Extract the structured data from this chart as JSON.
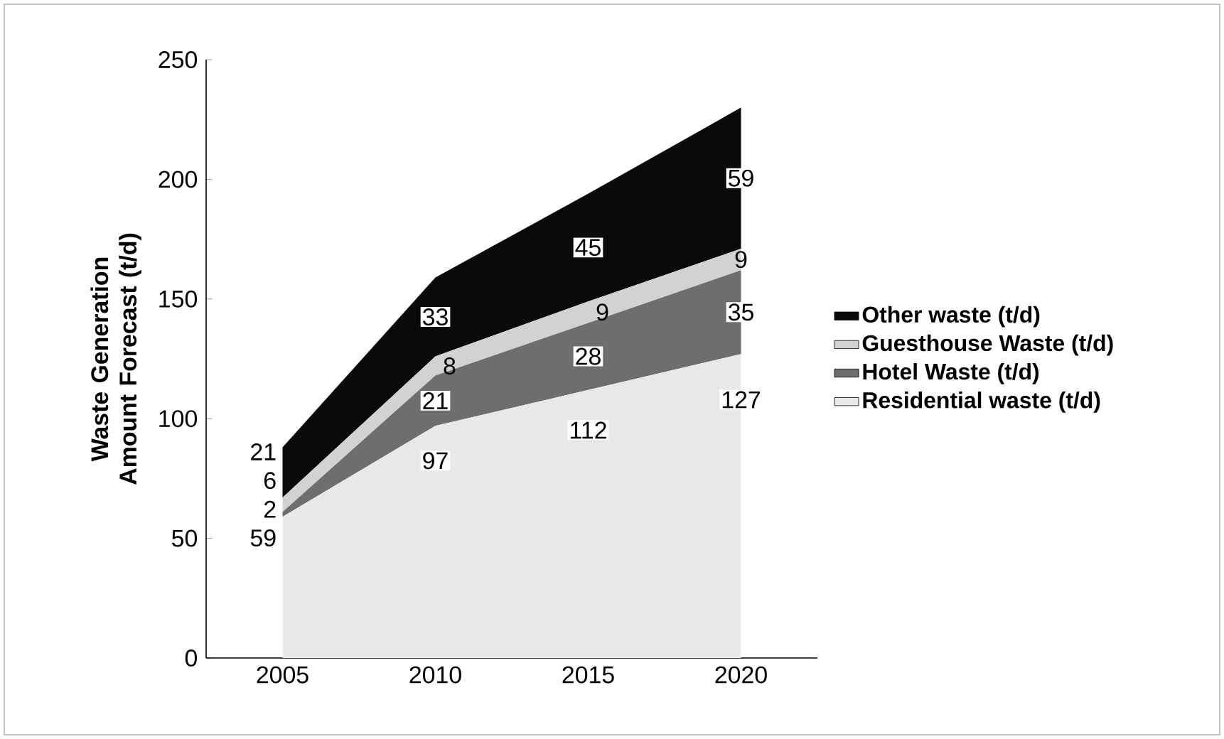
{
  "chart_data": {
    "type": "area",
    "stacked": true,
    "categories": [
      "2005",
      "2010",
      "2015",
      "2020"
    ],
    "ylabel": "Waste Generation Amount Forecast (t/d)",
    "series": [
      {
        "name": "Residential waste (t/d)",
        "color": "#e8e8e8",
        "values": [
          59,
          97,
          112,
          127
        ]
      },
      {
        "name": "Hotel Waste (t/d)",
        "color": "#6e6e6e",
        "values": [
          2,
          21,
          28,
          35
        ]
      },
      {
        "name": "Guesthouse Waste (t/d)",
        "color": "#d2d2d2",
        "values": [
          6,
          8,
          9,
          9
        ]
      },
      {
        "name": "Other waste (t/d)",
        "color": "#0a0a0a",
        "values": [
          21,
          33,
          45,
          59
        ]
      }
    ],
    "ylim": [
      0,
      250
    ],
    "yticks": [
      0,
      50,
      100,
      150,
      200,
      250
    ],
    "grid": false,
    "legend": "right",
    "data_labels": true
  }
}
